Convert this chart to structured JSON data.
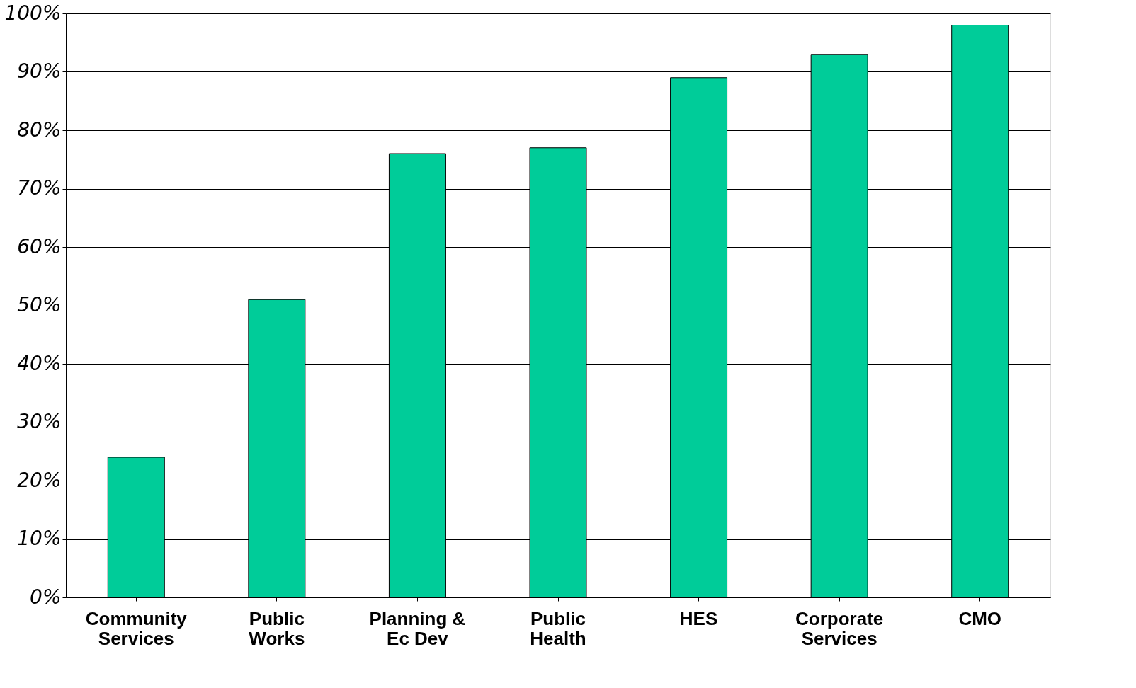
{
  "chart_data": {
    "type": "bar",
    "categories": [
      "Community Services",
      "Public Works",
      "Planning & Ec Dev",
      "Public Health",
      "HES",
      "Corporate Services",
      "CMO"
    ],
    "values": [
      24,
      51,
      76,
      77,
      89,
      93,
      98
    ],
    "color": "#00cc99",
    "ylim": [
      0,
      100
    ],
    "yticks": [
      {
        "value": 0,
        "label": "0%"
      },
      {
        "value": 10,
        "label": "10%"
      },
      {
        "value": 20,
        "label": "20%"
      },
      {
        "value": 30,
        "label": "30%"
      },
      {
        "value": 40,
        "label": "40%"
      },
      {
        "value": 50,
        "label": "50%"
      },
      {
        "value": 60,
        "label": "60%"
      },
      {
        "value": 70,
        "label": "70%"
      },
      {
        "value": 80,
        "label": "80%"
      },
      {
        "value": 90,
        "label": "90%"
      },
      {
        "value": 100,
        "label": "100%"
      }
    ],
    "grid": "y"
  }
}
